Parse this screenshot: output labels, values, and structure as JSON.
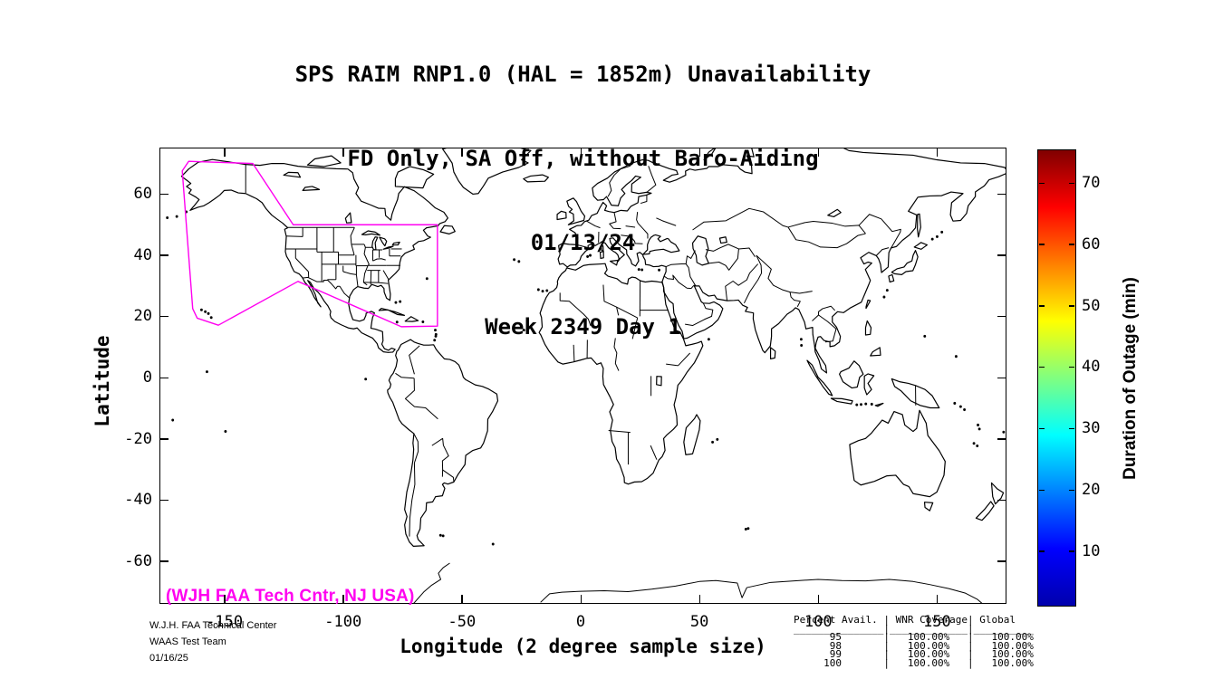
{
  "title": {
    "line1": "SPS RAIM RNP1.0 (HAL = 1852m) Unavailability",
    "line2": "FD Only, SA Off, without Baro-Aiding",
    "line3": "01/13/24",
    "line4": "Week 2349 Day 1"
  },
  "axes": {
    "xlabel": "Longitude (2 degree sample size)",
    "ylabel": "Latitude"
  },
  "colorbar_label": "Duration of Outage (min)",
  "annotations": {
    "credit": "(WJH FAA Tech Cntr, NJ USA)",
    "org_lines": [
      "W.J.H. FAA Technical Center",
      "WAAS Test Team",
      "01/16/25"
    ]
  },
  "coverage_table": {
    "lines": [
      "Percent Avail. | WNR Coverage| Global",
      "_______________|_____________|__________",
      "      95       |   100.00%   |   100.00%",
      "      98       |   100.00%   |   100.00%",
      "      99       |   100.00%   |   100.00%",
      "     100       |   100.00%   |   100.00%"
    ]
  },
  "colors": {
    "magenta": "#ff00f0",
    "line": "#000000",
    "background": "#ffffff",
    "jet_stops": [
      "#0000ad",
      "#0000ff",
      "#0080ff",
      "#00ffff",
      "#80ff80",
      "#ffff00",
      "#ff8000",
      "#ff0000",
      "#800000"
    ]
  },
  "chart_data": {
    "type": "map",
    "title": "SPS RAIM RNP1.0 (HAL = 1852m) Unavailability",
    "subtitle": "FD Only, SA Off, without Baro-Aiding",
    "date": "01/13/24",
    "gps_week_day": "Week 2349 Day 1",
    "xlabel": "Longitude (2 degree sample size)",
    "ylabel": "Latitude",
    "xlim": [
      -177.3,
      179.2
    ],
    "ylim": [
      -74,
      75.1
    ],
    "x_ticks": [
      -150,
      -100,
      -50,
      0,
      50,
      100,
      150
    ],
    "y_ticks": [
      60,
      40,
      20,
      0,
      -20,
      -40,
      -60
    ],
    "grid": false,
    "colorbar": {
      "label": "Duration of Outage (min)",
      "ticks": [
        10,
        20,
        30,
        40,
        50,
        60,
        70
      ],
      "range_min": 0,
      "range_max": 75,
      "colormap": "jet"
    },
    "outage_cells": [],
    "overlay_region": {
      "name": "WAAS coverage boundary",
      "color": "#ff00f0",
      "vertices_lon_lat": [
        [
          -165,
          70.6
        ],
        [
          -138,
          69.9
        ],
        [
          -121,
          49.9
        ],
        [
          -60.3,
          49.9
        ],
        [
          -60.3,
          16.8
        ],
        [
          -75.5,
          16.6
        ],
        [
          -119,
          31.4
        ],
        [
          -152.5,
          17.1
        ],
        [
          -161.4,
          19.4
        ],
        [
          -163.3,
          22.5
        ],
        [
          -167.7,
          67.5
        ]
      ]
    },
    "availability_table": {
      "columns": [
        "Percent Avail.",
        "WNR Coverage",
        "Global"
      ],
      "rows": [
        [
          95,
          "100.00%",
          "100.00%"
        ],
        [
          98,
          "100.00%",
          "100.00%"
        ],
        [
          99,
          "100.00%",
          "100.00%"
        ],
        [
          100,
          "100.00%",
          "100.00%"
        ]
      ]
    }
  }
}
